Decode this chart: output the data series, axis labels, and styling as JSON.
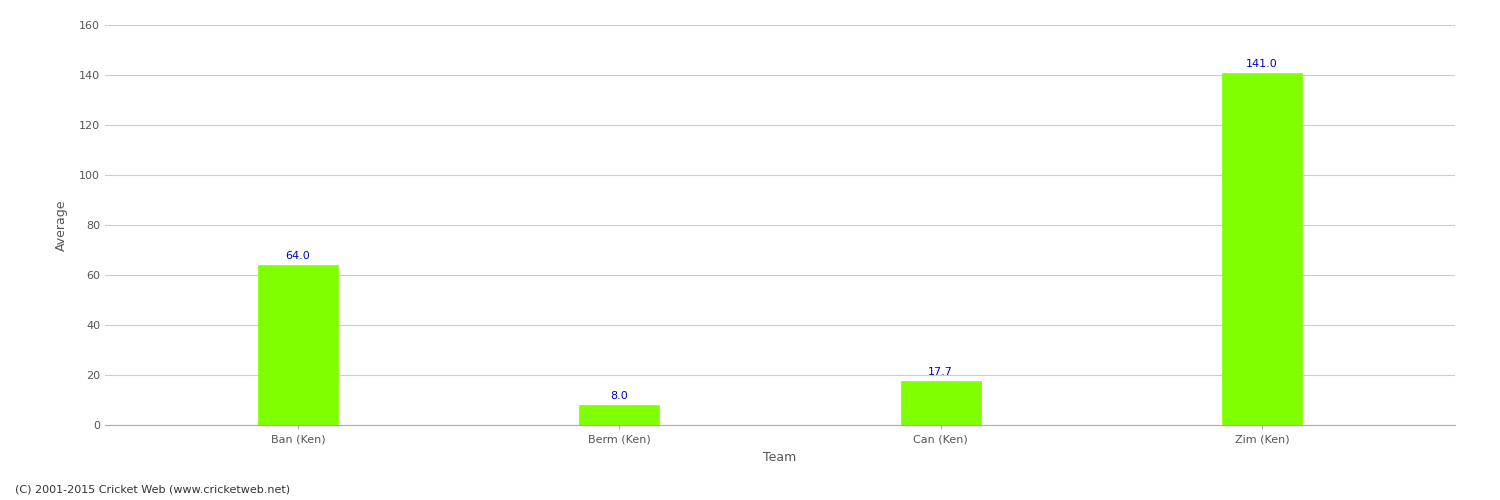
{
  "categories": [
    "Ban (Ken)",
    "Berm (Ken)",
    "Can (Ken)",
    "Zim (Ken)"
  ],
  "values": [
    64.0,
    8.0,
    17.7,
    141.0
  ],
  "bar_color": "#7fff00",
  "bar_edge_color": "#7fff00",
  "value_label_color": "#0000cc",
  "ylabel": "Average",
  "xlabel": "Team",
  "ylim": [
    0,
    160
  ],
  "yticks": [
    0,
    20,
    40,
    60,
    80,
    100,
    120,
    140,
    160
  ],
  "background_color": "#ffffff",
  "grid_color": "#cccccc",
  "footnote": "(C) 2001-2015 Cricket Web (www.cricketweb.net)",
  "value_fontsize": 8,
  "axis_label_fontsize": 9,
  "tick_fontsize": 8,
  "bar_width": 0.25,
  "xlim_left": -0.6,
  "xlim_right": 3.6
}
